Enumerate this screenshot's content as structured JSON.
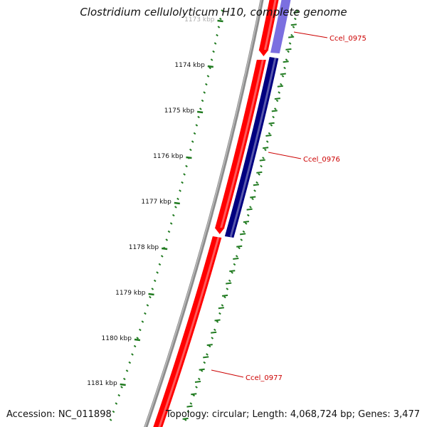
{
  "title": "Clostridium cellulolyticum H10, complete genome",
  "accession": "Accession: NC_011898",
  "summary": "Topology: circular; Length: 4,068,724 bp; Genes: 3,477",
  "ticks": [
    {
      "label": "1173 kbp",
      "kbp": 1173
    },
    {
      "label": "1174 kbp",
      "kbp": 1174
    },
    {
      "label": "1175 kbp",
      "kbp": 1175
    },
    {
      "label": "1176 kbp",
      "kbp": 1176
    },
    {
      "label": "1177 kbp",
      "kbp": 1177
    },
    {
      "label": "1178 kbp",
      "kbp": 1178
    },
    {
      "label": "1179 kbp",
      "kbp": 1179
    },
    {
      "label": "1180 kbp",
      "kbp": 1180
    },
    {
      "label": "1181 kbp",
      "kbp": 1181
    }
  ],
  "genes": [
    {
      "name": "Ccel_0975",
      "strand": "forward",
      "color": "#ff0000"
    },
    {
      "name": "Ccel_0976",
      "strand": "reverse",
      "color": "#000080"
    },
    {
      "name": "Ccel_0977",
      "strand": "forward",
      "color": "#ff0000"
    }
  ],
  "colors": {
    "backbone": "#8c8c8c",
    "forward_cds": "#ff0000",
    "reverse_cds": "#000080",
    "reverse_cds_faded": "#7b6fe0",
    "gc_ticks": "#1f7a1f",
    "label_lines": "#cc0000"
  }
}
